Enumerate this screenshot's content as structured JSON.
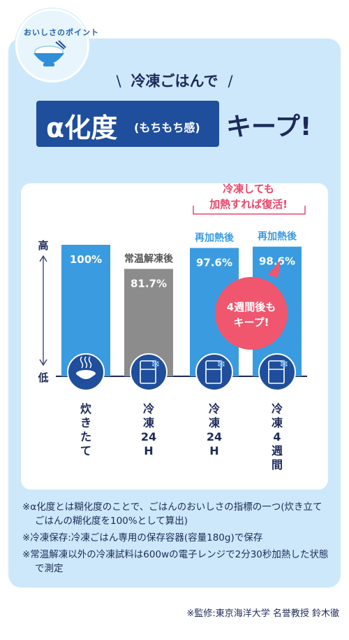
{
  "badge": {
    "text": "おいしさのポイント"
  },
  "heading": {
    "line1": "冷凍ごはんで",
    "alpha_main": "α化度",
    "alpha_sub": "(もちもち感)",
    "keep": "キープ!"
  },
  "chart_data": {
    "type": "bar",
    "categories": [
      "炊きたて",
      "冷凍24H",
      "冷凍24H",
      "冷凍4週間"
    ],
    "category_labels": [
      [
        "炊",
        "き",
        "た",
        "て"
      ],
      [
        "冷",
        "凍",
        "24",
        "H"
      ],
      [
        "冷",
        "凍",
        "24",
        "H"
      ],
      [
        "冷",
        "凍",
        "4",
        "週",
        "間"
      ]
    ],
    "values": [
      100,
      81.7,
      97.6,
      98.6
    ],
    "value_labels": [
      "100%",
      "81.7%",
      "97.6%",
      "98.6%"
    ],
    "bar_headers": [
      "",
      "常温解凍後",
      "再加熱後",
      "再加熱後"
    ],
    "colors": [
      "#3a9be0",
      "#8c8c8c",
      "#3a9be0",
      "#3a9be0"
    ],
    "y_axis": {
      "high": "高",
      "low": "低"
    },
    "annotation_top": [
      "冷凍しても",
      "加熱すれば復活!"
    ],
    "bubble": [
      "4週間後も",
      "キープ!"
    ],
    "bubble_color": "#f0566e",
    "accent_pink": "#e8476a",
    "accent_blue": "#3a9be0",
    "ylim": [
      0,
      100
    ]
  },
  "footnotes": [
    "※α化度とは糊化度のことで、ごはんのおいしさの指標の一つ(炊き立てごはんの糊化度を100%として算出)",
    "※冷凍保存:冷凍ごはん専用の保存容器(容量180g)で保存",
    "※常温解凍以外の冷凍試料は600wの電子レンジで2分30秒加熱した状態で測定"
  ],
  "credit": "※監修:東京海洋大学 名誉教授 鈴木徹"
}
